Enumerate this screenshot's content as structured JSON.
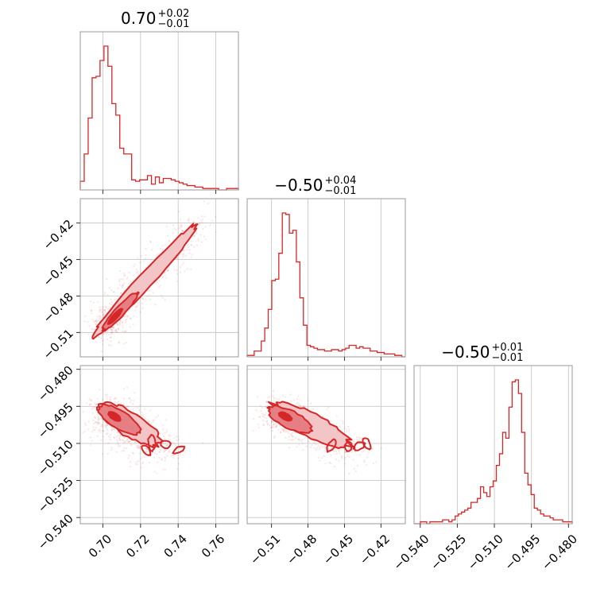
{
  "chart_data": {
    "type": "corner",
    "colors": {
      "series": "#d62728",
      "grid": "#c8c8c8",
      "frame": "#999999"
    },
    "parameters": [
      {
        "index": 0,
        "title_value": "0.70",
        "title_plus": "+0.02",
        "title_minus": "−0.01",
        "range": [
          0.688,
          0.772
        ],
        "ticks": [
          0.7,
          0.72,
          0.74,
          0.76
        ],
        "tick_labels": [
          "0.70",
          "0.72",
          "0.74",
          "0.76"
        ]
      },
      {
        "index": 1,
        "title_value": "−0.50",
        "title_plus": "+0.04",
        "title_minus": "−0.01",
        "range": [
          -0.53,
          -0.4
        ],
        "ticks": [
          -0.51,
          -0.48,
          -0.45,
          -0.42
        ],
        "tick_labels": [
          "−0.51",
          "−0.48",
          "−0.45",
          "−0.42"
        ]
      },
      {
        "index": 2,
        "title_value": "−0.50",
        "title_plus": "+0.01",
        "title_minus": "−0.01",
        "range": [
          -0.5425,
          -0.4785
        ],
        "ticks": [
          -0.54,
          -0.525,
          -0.51,
          -0.495,
          -0.48
        ],
        "tick_labels": [
          "−0.540",
          "−0.525",
          "−0.510",
          "−0.495",
          "−0.480"
        ]
      }
    ],
    "histograms": [
      {
        "param": 0,
        "counts": [
          6,
          25,
          50,
          78,
          79,
          90,
          100,
          86,
          60,
          52,
          29,
          25,
          25,
          7,
          6,
          7,
          7,
          10,
          4,
          9,
          5,
          8,
          8,
          7,
          6,
          5,
          4,
          3,
          3,
          2,
          2,
          1,
          1,
          1,
          1,
          0,
          0,
          1,
          1,
          1
        ]
      },
      {
        "param": 1,
        "counts": [
          1,
          1,
          4,
          4,
          11,
          20,
          33,
          53,
          54,
          72,
          100,
          99,
          86,
          88,
          66,
          41,
          22,
          8,
          7,
          6,
          5,
          5,
          4,
          4,
          5,
          5,
          4,
          5,
          6,
          8,
          8,
          6,
          7,
          6,
          6,
          4,
          4,
          3,
          3,
          2,
          2,
          2,
          1,
          1,
          0
        ]
      },
      {
        "param": 2,
        "counts": [
          0,
          0,
          1,
          1,
          0,
          1,
          1,
          1,
          1,
          2,
          2,
          1,
          2,
          4,
          5,
          6,
          7,
          8,
          11,
          11,
          13,
          19,
          16,
          14,
          19,
          22,
          30,
          36,
          47,
          44,
          60,
          73,
          74,
          67,
          47,
          26,
          20,
          15,
          8,
          7,
          5,
          4,
          4,
          3,
          2,
          2,
          2,
          1,
          1,
          1
        ]
      }
    ],
    "pair_panels": [
      {
        "x_param": 0,
        "y_param": 1,
        "relation": "strong positive correlation"
      },
      {
        "x_param": 0,
        "y_param": 2,
        "relation": "negative correlation"
      },
      {
        "x_param": 1,
        "y_param": 2,
        "relation": "negative correlation"
      }
    ]
  }
}
